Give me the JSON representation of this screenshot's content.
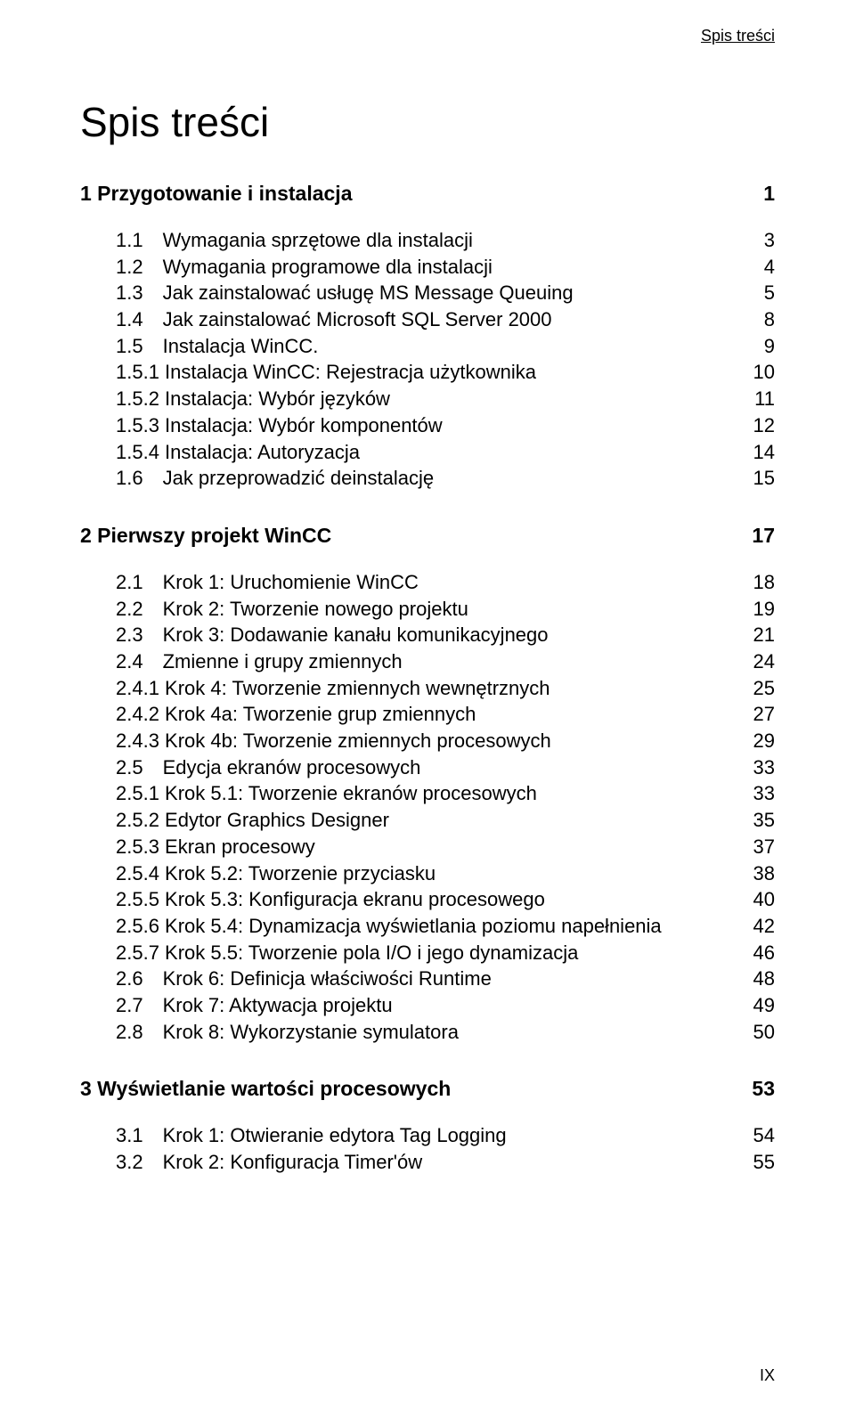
{
  "running_head": "Spis treści",
  "title": "Spis treści",
  "page_number": "IX",
  "sections": [
    {
      "number": "1",
      "title": "Przygotowanie i instalacja",
      "page": "1",
      "entries": [
        {
          "number": "1.1",
          "title": "Wymagania sprzętowe dla instalacji",
          "page": "3",
          "indent": 1
        },
        {
          "number": "1.2",
          "title": "Wymagania programowe dla instalacji",
          "page": "4",
          "indent": 1
        },
        {
          "number": "1.3",
          "title": "Jak zainstalować usługę MS Message Queuing",
          "page": "5",
          "indent": 1
        },
        {
          "number": "1.4",
          "title": "Jak zainstalować Microsoft SQL Server 2000",
          "page": "8",
          "indent": 1
        },
        {
          "number": "1.5",
          "title": "Instalacja WinCC.",
          "page": "9",
          "indent": 1
        },
        {
          "number": "1.5.1",
          "title": "Instalacja WinCC: Rejestracja użytkownika",
          "page": "10",
          "indent": 2
        },
        {
          "number": "1.5.2",
          "title": "Instalacja: Wybór języków",
          "page": "11",
          "indent": 2
        },
        {
          "number": "1.5.3",
          "title": "Instalacja: Wybór komponentów",
          "page": "12",
          "indent": 2
        },
        {
          "number": "1.5.4",
          "title": "Instalacja: Autoryzacja",
          "page": "14",
          "indent": 2
        },
        {
          "number": "1.6",
          "title": "Jak przeprowadzić deinstalację",
          "page": "15",
          "indent": 1
        }
      ]
    },
    {
      "number": "2",
      "title": "Pierwszy projekt WinCC",
      "page": "17",
      "entries": [
        {
          "number": "2.1",
          "title": "Krok 1: Uruchomienie WinCC",
          "page": "18",
          "indent": 1
        },
        {
          "number": "2.2",
          "title": "Krok 2: Tworzenie nowego projektu",
          "page": "19",
          "indent": 1
        },
        {
          "number": "2.3",
          "title": "Krok 3: Dodawanie kanału komunikacyjnego",
          "page": "21",
          "indent": 1
        },
        {
          "number": "2.4",
          "title": "Zmienne i grupy zmiennych",
          "page": "24",
          "indent": 1
        },
        {
          "number": "2.4.1",
          "title": "Krok 4: Tworzenie zmiennych wewnętrznych",
          "page": "25",
          "indent": 2
        },
        {
          "number": "2.4.2",
          "title": "Krok 4a: Tworzenie grup zmiennych",
          "page": "27",
          "indent": 2
        },
        {
          "number": "2.4.3",
          "title": "Krok 4b: Tworzenie zmiennych procesowych",
          "page": "29",
          "indent": 2
        },
        {
          "number": "2.5",
          "title": "Edycja ekranów procesowych",
          "page": "33",
          "indent": 1
        },
        {
          "number": "2.5.1",
          "title": "Krok 5.1: Tworzenie ekranów procesowych",
          "page": "33",
          "indent": 2
        },
        {
          "number": "2.5.2",
          "title": "Edytor Graphics Designer",
          "page": "35",
          "indent": 2
        },
        {
          "number": "2.5.3",
          "title": "Ekran procesowy",
          "page": "37",
          "indent": 2
        },
        {
          "number": "2.5.4",
          "title": "Krok 5.2: Tworzenie przyciasku",
          "page": "38",
          "indent": 2
        },
        {
          "number": "2.5.5",
          "title": "Krok 5.3: Konfiguracja ekranu procesowego",
          "page": "40",
          "indent": 2
        },
        {
          "number": "2.5.6",
          "title": "Krok 5.4: Dynamizacja wyświetlania poziomu napełnienia",
          "page": "42",
          "indent": 2
        },
        {
          "number": "2.5.7",
          "title": "Krok 5.5: Tworzenie pola I/O i jego dynamizacja",
          "page": "46",
          "indent": 2
        },
        {
          "number": "2.6",
          "title": "Krok 6: Definicja właściwości Runtime",
          "page": "48",
          "indent": 1
        },
        {
          "number": "2.7",
          "title": "Krok 7: Aktywacja projektu",
          "page": "49",
          "indent": 1
        },
        {
          "number": "2.8",
          "title": "Krok 8: Wykorzystanie symulatora",
          "page": "50",
          "indent": 1
        }
      ]
    },
    {
      "number": "3",
      "title": "Wyświetlanie wartości procesowych",
      "page": "53",
      "entries": [
        {
          "number": "3.1",
          "title": "Krok 1: Otwieranie edytora Tag Logging",
          "page": "54",
          "indent": 1
        },
        {
          "number": "3.2",
          "title": "Krok 2: Konfiguracja Timer'ów",
          "page": "55",
          "indent": 1
        }
      ]
    }
  ]
}
